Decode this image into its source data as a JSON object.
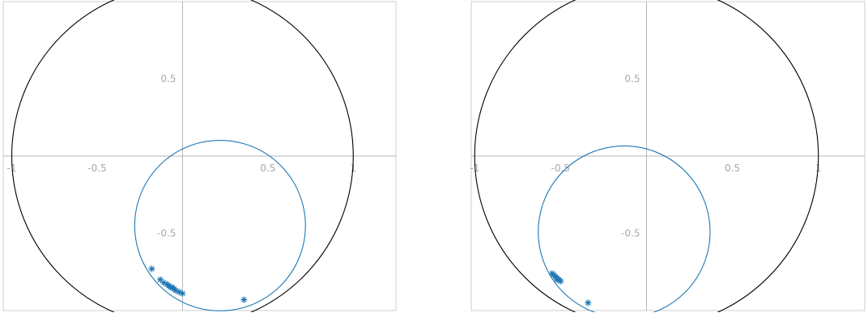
{
  "chart_data": [
    {
      "type": "scatter",
      "title": "",
      "xlabel": "",
      "ylabel": "",
      "xlim": [
        -1.05,
        1.25
      ],
      "ylim": [
        -1.0,
        1.0
      ],
      "grid": false,
      "axes_through_origin": true,
      "x_tick_labels": [
        {
          "value": -1,
          "label": "-1"
        },
        {
          "value": -0.5,
          "label": "-0.5"
        },
        {
          "value": 0.5,
          "label": "0.5"
        },
        {
          "value": 1,
          "label": "1"
        }
      ],
      "y_tick_labels": [
        {
          "value": 0.5,
          "label": "0.5"
        },
        {
          "value": -0.5,
          "label": "-0.5"
        }
      ],
      "unit_circle": {
        "center": [
          0,
          0
        ],
        "radius": 1,
        "color": "#000000"
      },
      "circle_series": {
        "center": [
          0.22,
          -0.45
        ],
        "radius": 0.5,
        "color": "#1f77b4"
      },
      "points": {
        "marker": "asterisk",
        "color": "#1f77b4",
        "x": [
          -0.18,
          -0.13,
          -0.11,
          -0.09,
          -0.08,
          -0.07,
          -0.06,
          -0.05,
          -0.04,
          -0.02,
          0.0,
          0.36
        ],
        "y": [
          -0.73,
          -0.8,
          -0.82,
          -0.83,
          -0.84,
          -0.85,
          -0.85,
          -0.86,
          -0.87,
          -0.88,
          -0.89,
          -0.93
        ]
      }
    },
    {
      "type": "scatter",
      "title": "",
      "xlabel": "",
      "ylabel": "",
      "xlim": [
        -1.02,
        1.27
      ],
      "ylim": [
        -1.0,
        1.0
      ],
      "grid": false,
      "axes_through_origin": true,
      "x_tick_labels": [
        {
          "value": -1,
          "label": "-1"
        },
        {
          "value": -0.5,
          "label": "-0.5"
        },
        {
          "value": 0.5,
          "label": "0.5"
        },
        {
          "value": 1,
          "label": "1"
        }
      ],
      "y_tick_labels": [
        {
          "value": 0.5,
          "label": "0.5"
        },
        {
          "value": -0.5,
          "label": "-0.5"
        }
      ],
      "unit_circle": {
        "center": [
          0,
          0
        ],
        "radius": 1,
        "color": "#000000"
      },
      "circle_series": {
        "center": [
          -0.13,
          -0.49
        ],
        "radius": 0.5,
        "color": "#1f77b4"
      },
      "points": {
        "marker": "asterisk",
        "color": "#1f77b4",
        "x": [
          -0.55,
          -0.54,
          -0.53,
          -0.52,
          -0.52,
          -0.51,
          -0.5,
          -0.34
        ],
        "y": [
          -0.76,
          -0.77,
          -0.78,
          -0.79,
          -0.8,
          -0.8,
          -0.81,
          -0.95
        ]
      }
    }
  ]
}
